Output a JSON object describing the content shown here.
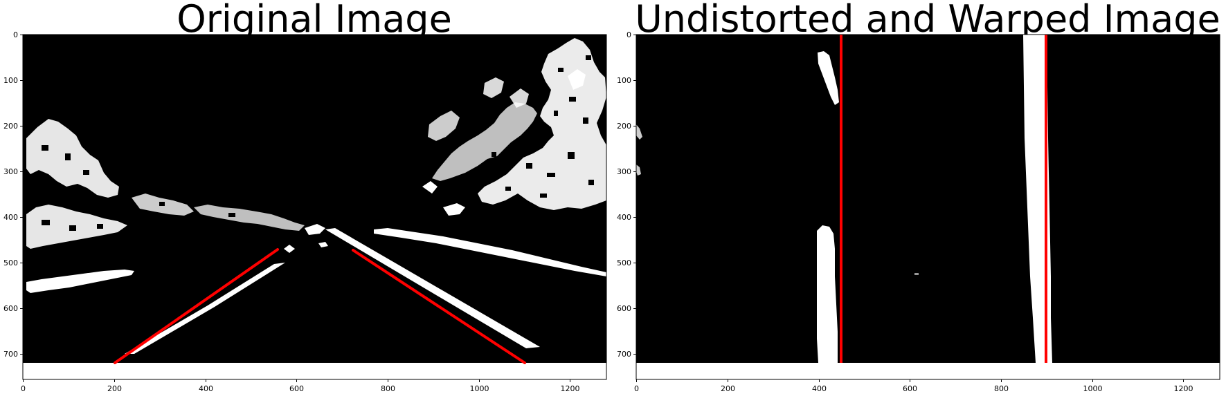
{
  "figure": {
    "panels": [
      {
        "title": "Original Image",
        "x_ticks": [
          "0",
          "200",
          "400",
          "600",
          "800",
          "1000",
          "1200"
        ],
        "y_ticks": [
          "0",
          "100",
          "200",
          "300",
          "400",
          "500",
          "600",
          "700"
        ]
      },
      {
        "title": "Undistorted and Warped Image",
        "x_ticks": [
          "0",
          "200",
          "400",
          "600",
          "800",
          "1000",
          "1200"
        ],
        "y_ticks": [
          "0",
          "100",
          "200",
          "300",
          "400",
          "500",
          "600",
          "700"
        ]
      }
    ]
  },
  "colors": {
    "background": "#000000",
    "lane_pixels": "#ffffff",
    "overlay_line": "#ff0000"
  }
}
